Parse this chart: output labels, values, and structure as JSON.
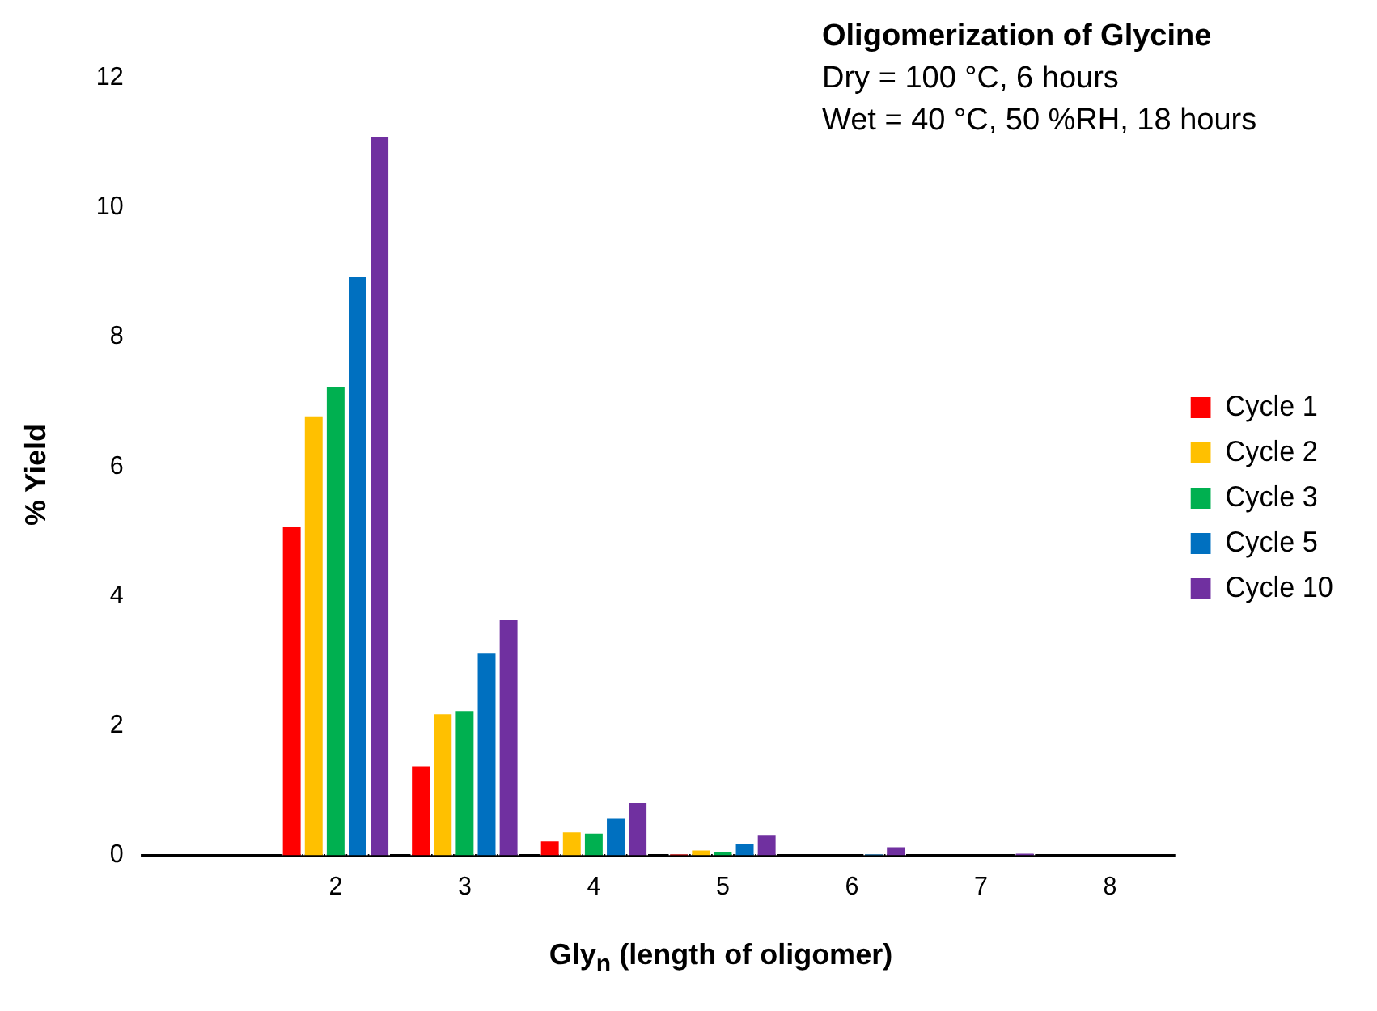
{
  "chart_data": {
    "type": "bar",
    "title": "Oligomerization of Glycine",
    "subtitle": "Dry = 100 °C, 6 hours",
    "annotations": [
      "Wet = 40 °C, 50 %RH, 18 hours"
    ],
    "xlabel": "Gly$_{n}$ (length of oligomer)",
    "ylabel": "% Yield",
    "categories": [
      null,
      "2",
      "3",
      "4",
      "5",
      "6",
      "7",
      "8"
    ],
    "series": [
      {
        "name": "Cycle 1",
        "color": "#ff0000",
        "values": [
          null,
          5.1,
          1.4,
          0.24,
          0.03,
          0,
          0,
          0
        ]
      },
      {
        "name": "Cycle 2",
        "color": "#ffc000",
        "values": [
          null,
          6.8,
          2.2,
          0.38,
          0.1,
          0,
          0,
          0
        ]
      },
      {
        "name": "Cycle 3",
        "color": "#00b050",
        "values": [
          null,
          7.25,
          2.25,
          0.36,
          0.07,
          0,
          0,
          0
        ]
      },
      {
        "name": "Cycle 5",
        "color": "#0070c0",
        "values": [
          null,
          8.95,
          3.15,
          0.6,
          0.2,
          0.03,
          0,
          0
        ]
      },
      {
        "name": "Cycle 10",
        "color": "#7030a0",
        "values": [
          null,
          11.1,
          3.65,
          0.83,
          0.33,
          0.15,
          0.05,
          0
        ]
      }
    ],
    "ylim": [
      0,
      12
    ],
    "yticks": [
      0,
      2,
      4,
      6,
      8,
      10,
      12
    ],
    "grid": false,
    "legend": "right"
  }
}
